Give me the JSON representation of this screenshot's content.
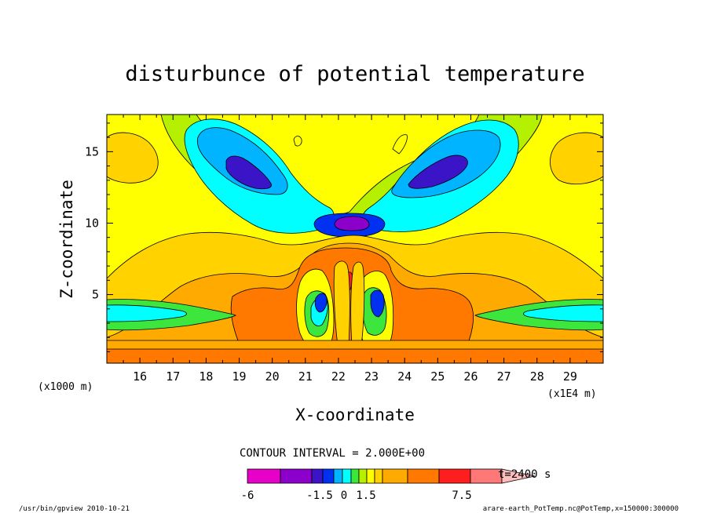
{
  "chart_data": {
    "type": "heatmap",
    "title": "disturbunce of potential temperature",
    "xlabel": "X-coordinate",
    "ylabel": "Z-coordinate",
    "x_units_left": "(x1000 m)",
    "x_units_right": "(x1E4 m)",
    "x_ticks": [
      "16",
      "17",
      "18",
      "19",
      "20",
      "21",
      "22",
      "23",
      "24",
      "25",
      "26",
      "27",
      "28",
      "29"
    ],
    "y_ticks": [
      "5",
      "10",
      "15"
    ],
    "xlim": [
      15.0,
      30.0
    ],
    "ylim": [
      0.2,
      17.6
    ],
    "contour_interval_text": "CONTOUR INTERVAL = 2.000E+00",
    "time_label": "t=2400 s",
    "colorbar": {
      "labels": [
        "-6",
        "-1.5",
        "0",
        "1.5",
        "7.5"
      ],
      "colors": [
        "#e600c8",
        "#8c00cc",
        "#3c14c8",
        "#0030f0",
        "#00b4ff",
        "#00ffff",
        "#3ce63c",
        "#b4f000",
        "#ffff00",
        "#ffd200",
        "#ffaa00",
        "#ff7800",
        "#ff1e1e",
        "#ff7878",
        "#ffbebe"
      ],
      "extend": "max"
    },
    "palette": {
      "bg": "#ffff00",
      "orange_light": "#ffd200",
      "orange": "#ffaa00",
      "orange_dark": "#ff7800",
      "red": "#ff1e1e",
      "green_light": "#b4f000",
      "green": "#3ce63c",
      "cyan": "#00ffff",
      "cyan_dark": "#00b4ff",
      "blue": "#0030f0",
      "blue_dark": "#3c14c8",
      "purple": "#8c00cc"
    }
  },
  "footer": {
    "left": "/usr/bin/gpview   2010-10-21",
    "right": "arare-earth_PotTemp.nc@PotTemp,x=150000:300000"
  }
}
